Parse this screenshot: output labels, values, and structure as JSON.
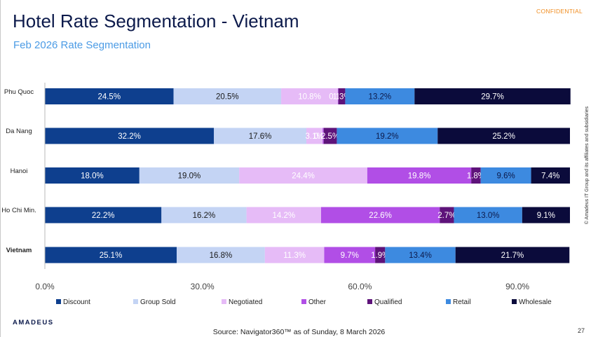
{
  "header": {
    "confidential": "CONFIDENTIAL",
    "title": "Hotel Rate Segmentation - Vietnam",
    "subtitle": "Feb 2026 Rate Segmentation"
  },
  "footer": {
    "brand": "amadeus",
    "source": "Source: Navigator360™ as of Sunday, 8 March 2026",
    "page_number": "27",
    "copyright": "© Amadeus IT Group and its affiliates and subsidiaries"
  },
  "chart_data": {
    "type": "bar",
    "orientation": "horizontal",
    "stacked": true,
    "categories": [
      "Phu Quoc",
      "Da Nang",
      "Hanoi",
      "Ho Chi Min.",
      "Vietnam"
    ],
    "category_bold": [
      false,
      false,
      false,
      false,
      true
    ],
    "x_ticks": [
      0,
      30,
      60,
      90
    ],
    "x_tick_labels": [
      "0.0%",
      "30.0%",
      "60.0%",
      "90.0%"
    ],
    "xlim": [
      0,
      100
    ],
    "legend_position": "bottom",
    "grid": false,
    "series": [
      {
        "name": "Discount",
        "color": "#0e3f8e",
        "label_color": "#ffffff",
        "values": [
          24.5,
          32.2,
          18.0,
          22.2,
          25.1
        ],
        "labels": [
          "24.5%",
          "32.2%",
          "18.0%",
          "22.2%",
          "25.1%"
        ]
      },
      {
        "name": "Group Sold",
        "color": "#c4d4f4",
        "label_color": "#1a1a1a",
        "values": [
          20.5,
          17.6,
          19.0,
          16.2,
          16.8
        ],
        "labels": [
          "20.5%",
          "17.6%",
          "19.0%",
          "16.2%",
          "16.8%"
        ]
      },
      {
        "name": "Negotiated",
        "color": "#e6bbf7",
        "label_color": "#ffffff",
        "values": [
          10.8,
          3.1,
          24.4,
          14.2,
          11.3
        ],
        "labels": [
          "10.8%",
          "3.1%",
          "24.4%",
          "14.2%",
          "11.3%"
        ]
      },
      {
        "name": "Other",
        "color": "#b14ee6",
        "label_color": "#ffffff",
        "values": [
          0.1,
          0.2,
          19.8,
          22.6,
          9.7
        ],
        "labels": [
          "0.1%",
          "0.2%",
          "19.8%",
          "22.6%",
          "9.7%"
        ]
      },
      {
        "name": "Qualified",
        "color": "#5e137a",
        "label_color": "#ffffff",
        "values": [
          1.3,
          2.5,
          1.8,
          2.7,
          1.9
        ],
        "labels": [
          "1.3%",
          "2.5%",
          "1.8%",
          "2.7%",
          "1.9%"
        ]
      },
      {
        "name": "Retail",
        "color": "#3d8ae0",
        "label_color": "#0c1a4b",
        "values": [
          13.2,
          19.2,
          9.6,
          13.0,
          13.4
        ],
        "labels": [
          "13.2%",
          "19.2%",
          "9.6%",
          "13.0%",
          "13.4%"
        ]
      },
      {
        "name": "Wholesale",
        "color": "#0b0b3b",
        "label_color": "#ffffff",
        "values": [
          29.7,
          25.2,
          7.4,
          9.1,
          21.7
        ],
        "labels": [
          "29.7%",
          "25.2%",
          "7.4%",
          "9.1%",
          "21.7%"
        ]
      }
    ]
  }
}
